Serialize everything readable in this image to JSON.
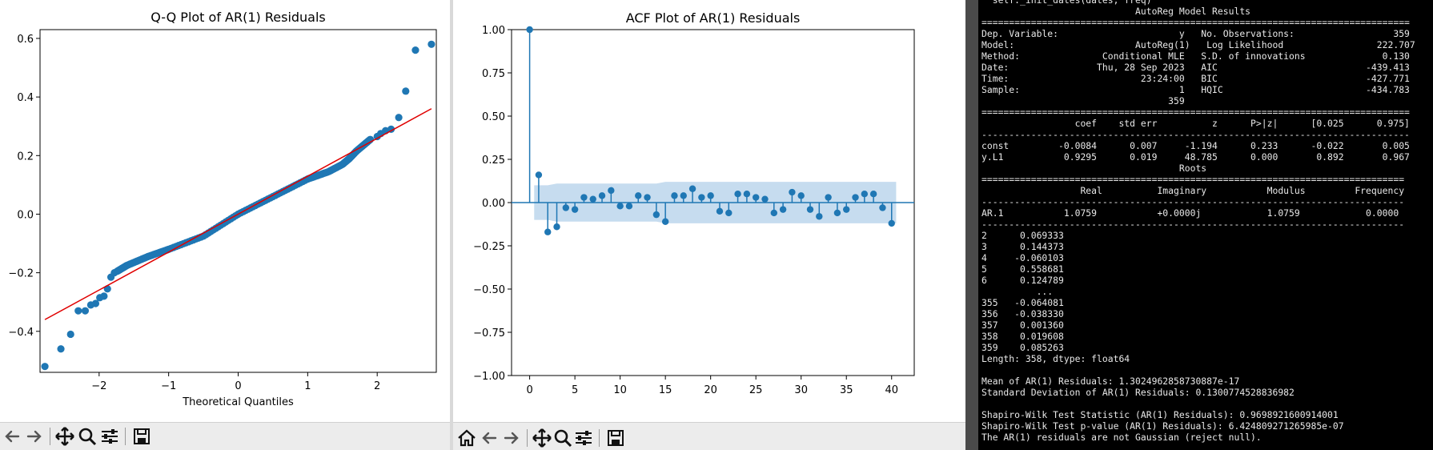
{
  "colors": {
    "marker": "#1f77b4",
    "fit_line": "#e00000",
    "conf_band": "#c6dcef",
    "terminal_bg": "#000000",
    "terminal_fg": "#e8e8e8"
  },
  "toolbar_icons": [
    "home-icon",
    "back-arrow-icon",
    "forward-arrow-icon",
    "pan-icon",
    "zoom-icon",
    "configure-subplots-icon",
    "save-icon"
  ],
  "chart_data": [
    {
      "type": "scatter",
      "title": "Q-Q Plot of AR(1) Residuals",
      "xlabel": "Theoretical Quantiles",
      "ylabel": "",
      "xlim": [
        -2.85,
        2.85
      ],
      "ylim": [
        -0.54,
        0.63
      ],
      "xticks": [
        -2,
        -1,
        0,
        1,
        2
      ],
      "xtick_labels": [
        "−2",
        "−1",
        "0",
        "1",
        "2"
      ],
      "yticks": [
        -0.4,
        -0.2,
        0.0,
        0.2,
        0.4,
        0.6
      ],
      "ytick_labels": [
        "−0.4",
        "−0.2",
        "0.0",
        "0.2",
        "0.4",
        "0.6"
      ],
      "grid": false,
      "reference_line": [
        [
          -2.78,
          -0.36
        ],
        [
          2.78,
          0.36
        ]
      ],
      "points_x": [
        -2.78,
        -2.55,
        -2.41,
        -2.3,
        -2.2,
        -2.12,
        -2.05,
        -1.99,
        -1.93,
        -1.88,
        -1.83,
        -1.78,
        -1.74,
        -1.6,
        -1.3,
        -1.0,
        -0.5,
        0.0,
        0.5,
        1.0,
        1.3,
        1.5,
        1.6,
        1.7,
        1.8,
        1.9,
        2.0,
        2.05,
        2.12,
        2.2,
        2.31,
        2.41,
        2.55,
        2.78
      ],
      "points_y": [
        -0.52,
        -0.46,
        -0.41,
        -0.33,
        -0.33,
        -0.31,
        -0.305,
        -0.285,
        -0.28,
        -0.255,
        -0.215,
        -0.2,
        -0.195,
        -0.175,
        -0.145,
        -0.12,
        -0.075,
        0.0,
        0.06,
        0.12,
        0.145,
        0.17,
        0.19,
        0.215,
        0.235,
        0.255,
        0.265,
        0.275,
        0.285,
        0.29,
        0.33,
        0.42,
        0.56,
        0.58
      ]
    },
    {
      "type": "stem",
      "title": "ACF Plot of AR(1) Residuals",
      "xlabel": "",
      "ylabel": "",
      "xlim": [
        -2.0,
        42.5
      ],
      "ylim": [
        -1.0,
        1.0
      ],
      "xticks": [
        0,
        5,
        10,
        15,
        20,
        25,
        30,
        35,
        40
      ],
      "xtick_labels": [
        "0",
        "5",
        "10",
        "15",
        "20",
        "25",
        "30",
        "35",
        "40"
      ],
      "yticks": [
        -1.0,
        -0.75,
        -0.5,
        -0.25,
        0.0,
        0.25,
        0.5,
        0.75,
        1.0
      ],
      "ytick_labels": [
        "−1.00",
        "−0.75",
        "−0.50",
        "−0.25",
        "0.00",
        "0.25",
        "0.50",
        "0.75",
        "1.00"
      ],
      "grid": false,
      "lags": [
        0,
        1,
        2,
        3,
        4,
        5,
        6,
        7,
        8,
        9,
        10,
        11,
        12,
        13,
        14,
        15,
        16,
        17,
        18,
        19,
        20,
        21,
        22,
        23,
        24,
        25,
        26,
        27,
        28,
        29,
        30,
        31,
        32,
        33,
        34,
        35,
        36,
        37,
        38,
        39,
        40
      ],
      "values": [
        1.0,
        0.16,
        -0.17,
        -0.14,
        -0.03,
        -0.04,
        0.03,
        0.02,
        0.04,
        0.07,
        -0.02,
        -0.02,
        0.04,
        0.03,
        -0.07,
        -0.11,
        0.04,
        0.04,
        0.08,
        0.03,
        0.04,
        -0.05,
        -0.06,
        0.05,
        0.05,
        0.03,
        0.02,
        -0.06,
        -0.04,
        0.06,
        0.04,
        -0.04,
        -0.08,
        0.03,
        -0.06,
        -0.04,
        0.03,
        0.05,
        0.05,
        -0.03,
        -0.12
      ],
      "confidence_band_upper": [
        0.1,
        0.1,
        0.1,
        0.11,
        0.11,
        0.11,
        0.11,
        0.11,
        0.11,
        0.11,
        0.11,
        0.11,
        0.11,
        0.11,
        0.11,
        0.12,
        0.12,
        0.12,
        0.12,
        0.12,
        0.12,
        0.12,
        0.12,
        0.12,
        0.12,
        0.12,
        0.12,
        0.12,
        0.12,
        0.12,
        0.12,
        0.12,
        0.12,
        0.12,
        0.12,
        0.12,
        0.12,
        0.12,
        0.12,
        0.12,
        0.12
      ]
    }
  ],
  "terminal": {
    "lines": [
      "  self._init_dates(dates, freq)",
      "                            AutoReg Model Results",
      "==============================================================================",
      "Dep. Variable:                      y   No. Observations:                  359",
      "Model:                      AutoReg(1)   Log Likelihood                 222.707",
      "Method:               Conditional MLE   S.D. of innovations              0.130",
      "Date:                Thu, 28 Sep 2023   AIC                           -439.413",
      "Time:                        23:24:00   BIC                           -427.771",
      "Sample:                             1   HQIC                          -434.783",
      "                                  359",
      "==============================================================================",
      "                 coef    std err          z      P>|z|      [0.025      0.975]",
      "------------------------------------------------------------------------------",
      "const         -0.0084      0.007     -1.194      0.233      -0.022       0.005",
      "y.L1           0.9295      0.019     48.785      0.000       0.892       0.967",
      "                                    Roots",
      "=============================================================================",
      "                  Real          Imaginary           Modulus         Frequency",
      "-----------------------------------------------------------------------------",
      "AR.1           1.0759           +0.0000j            1.0759            0.0000",
      "-----------------------------------------------------------------------------",
      "2      0.069333",
      "3      0.144373",
      "4     -0.060103",
      "5      0.558681",
      "6      0.124789",
      "          ...",
      "355   -0.064081",
      "356   -0.038330",
      "357    0.001360",
      "358    0.019608",
      "359    0.085263",
      "Length: 358, dtype: float64",
      "",
      "Mean of AR(1) Residuals: 1.3024962858730887e-17",
      "Standard Deviation of AR(1) Residuals: 0.1300774528836982",
      "",
      "Shapiro-Wilk Test Statistic (AR(1) Residuals): 0.9698921600914001",
      "Shapiro-Wilk Test p-value (AR(1) Residuals): 6.424809271265985e-07",
      "The AR(1) residuals are not Gaussian (reject null)."
    ]
  }
}
